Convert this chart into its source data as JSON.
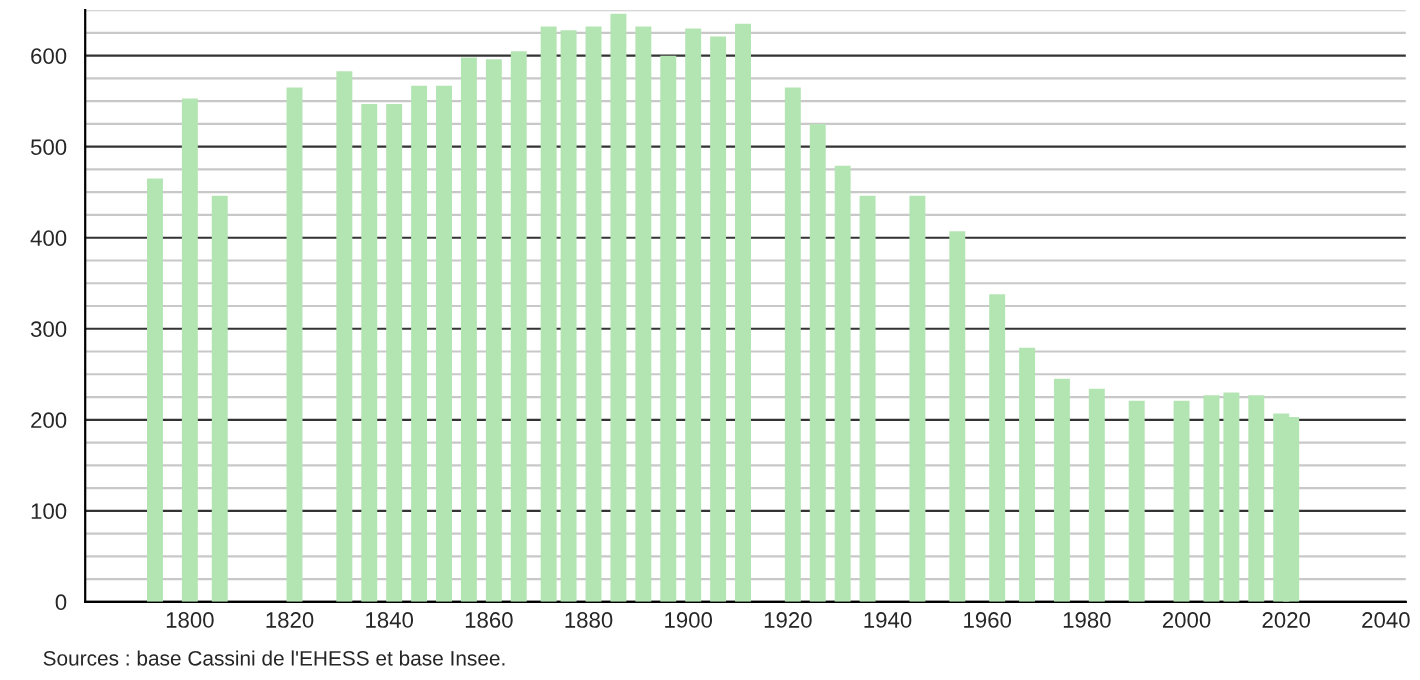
{
  "chart_data": {
    "type": "bar",
    "x": [
      1793,
      1800,
      1806,
      1821,
      1831,
      1836,
      1841,
      1846,
      1851,
      1856,
      1861,
      1866,
      1872,
      1876,
      1881,
      1886,
      1891,
      1896,
      1901,
      1906,
      1911,
      1921,
      1926,
      1931,
      1936,
      1946,
      1954,
      1962,
      1968,
      1975,
      1982,
      1990,
      1999,
      2005,
      2009,
      2014,
      2019,
      2021
    ],
    "values": [
      465,
      553,
      446,
      565,
      583,
      547,
      547,
      567,
      567,
      598,
      596,
      605,
      632,
      628,
      632,
      646,
      632,
      600,
      630,
      621,
      635,
      565,
      525,
      479,
      446,
      446,
      407,
      338,
      279,
      245,
      234,
      221,
      221,
      227,
      230,
      227,
      207,
      203
    ],
    "color": "#b3e5b3",
    "xlim": [
      1779,
      2044
    ],
    "xticks": [
      1800,
      1820,
      1840,
      1860,
      1880,
      1900,
      1920,
      1940,
      1960,
      1980,
      2000,
      2020,
      2040
    ],
    "ylim": [
      0,
      650
    ],
    "yticks": [
      0,
      {
        "value": 25,
        "label": null
      },
      {
        "value": 50,
        "label": null
      },
      {
        "value": 75,
        "label": null
      },
      100,
      {
        "value": 125,
        "label": null
      },
      {
        "value": 150,
        "label": null
      },
      {
        "value": 175,
        "label": null
      },
      200,
      {
        "value": 225,
        "label": null
      },
      {
        "value": 250,
        "label": null
      },
      {
        "value": 275,
        "label": null
      },
      300,
      {
        "value": 325,
        "label": null
      },
      {
        "value": 350,
        "label": null
      },
      {
        "value": 375,
        "label": null
      },
      400,
      {
        "value": 425,
        "label": null
      },
      {
        "value": 450,
        "label": null
      },
      {
        "value": 475,
        "label": null
      },
      500,
      {
        "value": 525,
        "label": null
      },
      {
        "value": 550,
        "label": null
      },
      {
        "value": 575,
        "label": null
      },
      600,
      {
        "value": 625,
        "label": null
      },
      {
        "value": 650,
        "label": null
      }
    ],
    "grid": "y",
    "annotations": [
      "Sources : base Cassini de l'EHESS et base Insee."
    ]
  }
}
